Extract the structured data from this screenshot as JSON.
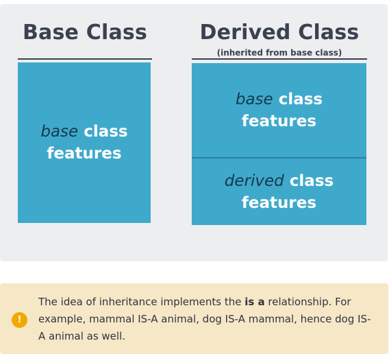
{
  "base": {
    "title": "Base Class",
    "box_em": "base",
    "box_text1": "class",
    "box_text2": "features"
  },
  "derived": {
    "title": "Derived Class",
    "subtitle": "(inherited from base class)",
    "top_em": "base",
    "top_text1": "class",
    "top_text2": "features",
    "bottom_em": "derived",
    "bottom_text1": "class",
    "bottom_text2": "features"
  },
  "note": {
    "icon": "exclamation-icon",
    "text_before": "The idea of inheritance implements the ",
    "text_bold": "is a",
    "text_after": " relationship. For example, mammal IS-A animal, dog IS-A mammal, hence dog IS-A animal as well."
  },
  "colors": {
    "box": "#3fa9cc",
    "box_em_text": "#14394e",
    "title": "#3a4150",
    "note_bg": "#f6e7c7",
    "icon": "#f0a900"
  }
}
